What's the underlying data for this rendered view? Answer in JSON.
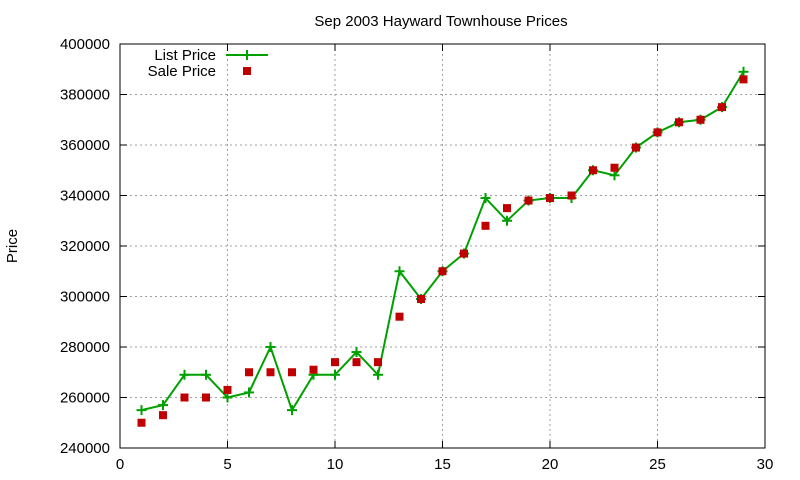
{
  "chart_data": {
    "type": "line",
    "title": "Sep 2003 Hayward Townhouse Prices",
    "xlabel": "",
    "ylabel": "Price",
    "xlim": [
      0,
      30
    ],
    "ylim": [
      240000,
      400000
    ],
    "xticks": [
      0,
      5,
      10,
      15,
      20,
      25,
      30
    ],
    "yticks": [
      240000,
      260000,
      280000,
      300000,
      320000,
      340000,
      360000,
      380000,
      400000
    ],
    "grid": true,
    "legend_position": "top-left",
    "series": [
      {
        "name": "List Price",
        "style": "line-with-plus-markers",
        "color": "#00a000",
        "points": [
          [
            1,
            255000
          ],
          [
            2,
            257000
          ],
          [
            3,
            269000
          ],
          [
            4,
            269000
          ],
          [
            5,
            260000
          ],
          [
            6,
            262000
          ],
          [
            7,
            280000
          ],
          [
            8,
            255000
          ],
          [
            9,
            269000
          ],
          [
            10,
            269000
          ],
          [
            11,
            278000
          ],
          [
            12,
            269000
          ],
          [
            13,
            310000
          ],
          [
            14,
            299000
          ],
          [
            15,
            310000
          ],
          [
            16,
            317000
          ],
          [
            17,
            339000
          ],
          [
            18,
            330000
          ],
          [
            19,
            338000
          ],
          [
            20,
            339000
          ],
          [
            21,
            339000
          ],
          [
            22,
            350000
          ],
          [
            23,
            348000
          ],
          [
            24,
            359000
          ],
          [
            25,
            365000
          ],
          [
            26,
            369000
          ],
          [
            27,
            370000
          ],
          [
            28,
            375000
          ],
          [
            29,
            389000
          ]
        ]
      },
      {
        "name": "Sale Price",
        "style": "square-markers",
        "color": "#c00000",
        "points": [
          [
            1,
            250000
          ],
          [
            2,
            253000
          ],
          [
            3,
            260000
          ],
          [
            4,
            260000
          ],
          [
            5,
            263000
          ],
          [
            6,
            270000
          ],
          [
            7,
            270000
          ],
          [
            8,
            270000
          ],
          [
            9,
            271000
          ],
          [
            10,
            274000
          ],
          [
            11,
            274000
          ],
          [
            12,
            274000
          ],
          [
            13,
            292000
          ],
          [
            14,
            299000
          ],
          [
            15,
            310000
          ],
          [
            16,
            317000
          ],
          [
            17,
            328000
          ],
          [
            18,
            335000
          ],
          [
            19,
            338000
          ],
          [
            20,
            339000
          ],
          [
            21,
            340000
          ],
          [
            22,
            350000
          ],
          [
            23,
            351000
          ],
          [
            24,
            359000
          ],
          [
            25,
            365000
          ],
          [
            26,
            369000
          ],
          [
            27,
            370000
          ],
          [
            28,
            375000
          ],
          [
            29,
            386000
          ]
        ]
      }
    ]
  }
}
